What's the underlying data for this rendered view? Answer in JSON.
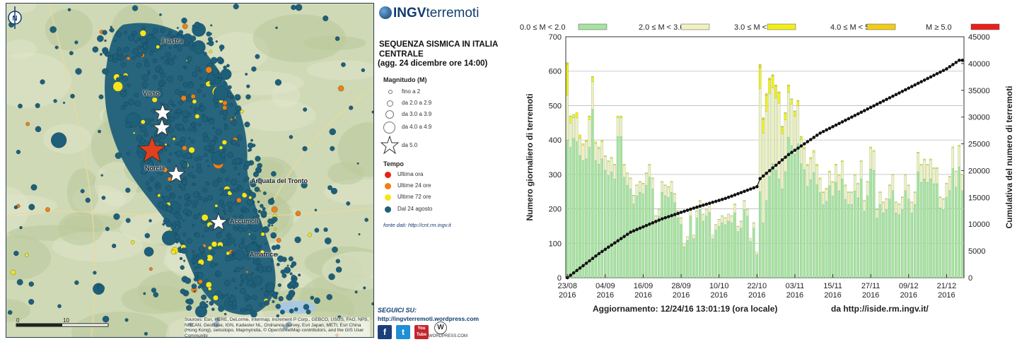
{
  "map": {
    "towns": [
      "Fiastra",
      "Visso",
      "Norcia",
      "Arquata del Tronto",
      "Accumoli",
      "Amatrice"
    ],
    "north_label": "N",
    "scale": [
      "0",
      "10"
    ],
    "credit": "Sources: Esri, HERE, DeLorme, Intermap, increment P Corp., GEBCO, USGS, FAO, NPS, NRCAN, GeoBase, IGN, Kadaster NL, Ordnance Survey, Esri Japan, METI, Esri China (Hong Kong), swisstopo, Mapmyindia, © OpenStreetMap contributors, and the GIS User Community"
  },
  "legend": {
    "brand_a": "INGV",
    "brand_b": "terremoti",
    "title": "SEQUENZA SISMICA IN ITALIA CENTRALE",
    "update": "(agg. 24 dicembre ore 14:00)",
    "magnitude_title": "Magnitudo (M)",
    "magnitude_items": [
      "fino a 2",
      "da 2.0 a 2.9",
      "da 3.0 a 3.9",
      "da 4.0 a 4.9",
      "da 5.0"
    ],
    "time_title": "Tempo",
    "time_items": [
      {
        "label": "Ultima ora",
        "color": "#e8201a"
      },
      {
        "label": "Ultime 24 ore",
        "color": "#f07f14"
      },
      {
        "label": "Ultime 72 ore",
        "color": "#f7e41a"
      },
      {
        "label": "Dal 24 agosto",
        "color": "#1e5f7a"
      }
    ],
    "source": "fonte dati: http://cnt.rm.ingv.it",
    "follow_title": "SEGUICI SU:",
    "follow_url": "http://ingvterremoti.wordpress.com",
    "social_icons": [
      "facebook-icon",
      "twitter-icon",
      "youtube-icon",
      "wordpress-icon"
    ],
    "social_glyphs": {
      "facebook": "f",
      "twitter": "t",
      "youtube": "You Tube",
      "wordpress": "W"
    },
    "wordpress_label": "WORDPRESS.COM"
  },
  "chart_data": {
    "type": "bar",
    "stacked": true,
    "categories_start": "2016-08-23",
    "categories_end": "2016-12-24",
    "x_tick_labels": [
      [
        "23/08",
        "2016"
      ],
      [
        "04/09",
        "2016"
      ],
      [
        "16/09",
        "2016"
      ],
      [
        "28/09",
        "2016"
      ],
      [
        "10/10",
        "2016"
      ],
      [
        "22/10",
        "2016"
      ],
      [
        "03/11",
        "2016"
      ],
      [
        "15/11",
        "2016"
      ],
      [
        "27/11",
        "2016"
      ],
      [
        "09/12",
        "2016"
      ],
      [
        "21/12",
        "2016"
      ]
    ],
    "ylabel": "Numero giornaliero di terremoti",
    "y2label": "Cumulativa del numero di terremoti",
    "ylim": [
      0,
      700
    ],
    "y_ticks": [
      0,
      100,
      200,
      300,
      400,
      500,
      600,
      700
    ],
    "y2lim": [
      0,
      45000
    ],
    "y2_ticks": [
      0,
      5000,
      10000,
      15000,
      20000,
      25000,
      30000,
      35000,
      40000,
      45000
    ],
    "legend": [
      "0.0 ≤ M < 2.0",
      "2.0 ≤ M < 3.0",
      "3.0 ≤ M < 4.0",
      "4.0 ≤ M < 5.0",
      "M ≥ 5.0"
    ],
    "colors": [
      "#a6e3a0",
      "#f0f0c2",
      "#f3ee1a",
      "#f0cd1a",
      "#e8201a"
    ],
    "grid": "horizontal",
    "daily_totals": [
      625,
      470,
      475,
      480,
      415,
      390,
      400,
      470,
      585,
      395,
      380,
      400,
      355,
      340,
      350,
      330,
      470,
      470,
      330,
      305,
      290,
      240,
      270,
      280,
      275,
      305,
      330,
      290,
      180,
      200,
      280,
      270,
      265,
      280,
      245,
      195,
      175,
      100,
      120,
      200,
      125,
      195,
      225,
      185,
      200,
      215,
      125,
      155,
      170,
      180,
      175,
      185,
      180,
      215,
      150,
      165,
      225,
      200,
      115,
      160,
      75,
      620,
      465,
      535,
      580,
      590,
      560,
      540,
      440,
      480,
      560,
      520,
      485,
      515,
      410,
      380,
      330,
      350,
      370,
      330,
      290,
      250,
      260,
      310,
      280,
      330,
      300,
      340,
      270,
      250,
      250,
      300,
      275,
      340,
      225,
      280,
      380,
      370,
      200,
      250,
      220,
      230,
      270,
      300,
      220,
      215,
      235,
      300,
      270,
      220,
      250,
      365,
      330,
      345,
      330,
      345,
      320,
      320,
      235,
      230,
      275,
      295,
      380,
      310,
      385,
      300
    ],
    "m2to3_daily": [
      130,
      70,
      60,
      70,
      50,
      45,
      50,
      80,
      80,
      50,
      45,
      50,
      40,
      40,
      40,
      40,
      55,
      55,
      35,
      35,
      30,
      25,
      30,
      30,
      30,
      35,
      35,
      30,
      20,
      20,
      30,
      30,
      30,
      30,
      25,
      20,
      20,
      10,
      12,
      20,
      12,
      20,
      25,
      20,
      20,
      25,
      12,
      15,
      20,
      20,
      20,
      20,
      20,
      25,
      15,
      20,
      25,
      20,
      10,
      15,
      8,
      300,
      260,
      260,
      240,
      220,
      210,
      220,
      160,
      150,
      130,
      120,
      110,
      110,
      70,
      60,
      60,
      60,
      60,
      55,
      40,
      35,
      35,
      40,
      40,
      50,
      45,
      50,
      40,
      35,
      35,
      45,
      40,
      50,
      30,
      40,
      60,
      55,
      25,
      35,
      30,
      30,
      40,
      45,
      30,
      30,
      35,
      45,
      40,
      30,
      35,
      55,
      50,
      55,
      50,
      55,
      45,
      45,
      30,
      30,
      40,
      40,
      60,
      45,
      60,
      45
    ],
    "m3to4_daily": [
      90,
      20,
      10,
      15,
      10,
      5,
      5,
      10,
      15,
      5,
      5,
      5,
      3,
      3,
      3,
      3,
      5,
      5,
      3,
      2,
      2,
      1,
      2,
      2,
      2,
      2,
      3,
      2,
      1,
      1,
      2,
      2,
      2,
      2,
      2,
      1,
      1,
      0,
      0,
      1,
      0,
      1,
      2,
      1,
      1,
      1,
      0,
      1,
      1,
      1,
      1,
      1,
      1,
      2,
      1,
      1,
      2,
      1,
      0,
      1,
      0,
      60,
      40,
      45,
      40,
      35,
      35,
      30,
      20,
      20,
      20,
      15,
      15,
      15,
      8,
      6,
      5,
      5,
      5,
      5,
      3,
      3,
      3,
      3,
      3,
      3,
      3,
      3,
      3,
      2,
      2,
      3,
      3,
      3,
      2,
      2,
      4,
      3,
      2,
      2,
      2,
      2,
      2,
      2,
      2,
      2,
      2,
      2,
      2,
      2,
      2,
      3,
      3,
      3,
      3,
      3,
      2,
      2,
      2,
      2,
      2,
      2,
      3,
      2,
      3,
      2
    ],
    "m4to5_daily": [
      5,
      1,
      0,
      0,
      0,
      0,
      0,
      1,
      1,
      0,
      0,
      0,
      0,
      0,
      0,
      0,
      0,
      0,
      0,
      0,
      0,
      0,
      0,
      0,
      0,
      0,
      0,
      0,
      0,
      0,
      0,
      0,
      0,
      0,
      0,
      0,
      0,
      0,
      0,
      0,
      0,
      0,
      0,
      0,
      0,
      0,
      0,
      0,
      0,
      0,
      0,
      0,
      0,
      0,
      0,
      0,
      0,
      0,
      0,
      0,
      0,
      10,
      6,
      6,
      5,
      4,
      3,
      3,
      2,
      2,
      2,
      1,
      1,
      1,
      1,
      0,
      0,
      0,
      0,
      0,
      0,
      0,
      0,
      0,
      0,
      0,
      0,
      0,
      0,
      0,
      0,
      0,
      0,
      0,
      0,
      0,
      0,
      0,
      0,
      0,
      0,
      0,
      0,
      0,
      0,
      0,
      0,
      0,
      0,
      0,
      0,
      0,
      0,
      0,
      0,
      0,
      0,
      0,
      0,
      0,
      0,
      0,
      0,
      0,
      0,
      0
    ],
    "cumulative_final": 40600,
    "cumulative_knots": [
      [
        0,
        0
      ],
      [
        10,
        4500
      ],
      [
        20,
        8500
      ],
      [
        30,
        11000
      ],
      [
        40,
        13000
      ],
      [
        50,
        14800
      ],
      [
        60,
        17000
      ],
      [
        61,
        18500
      ],
      [
        70,
        23000
      ],
      [
        80,
        27000
      ],
      [
        90,
        30000
      ],
      [
        100,
        33000
      ],
      [
        110,
        36000
      ],
      [
        120,
        39000
      ],
      [
        124,
        40600
      ]
    ],
    "footer_update": "Aggiornamento: 12/24/16 13:01:19 (ora locale)",
    "footer_source": "da http://iside.rm.ingv.it/"
  }
}
